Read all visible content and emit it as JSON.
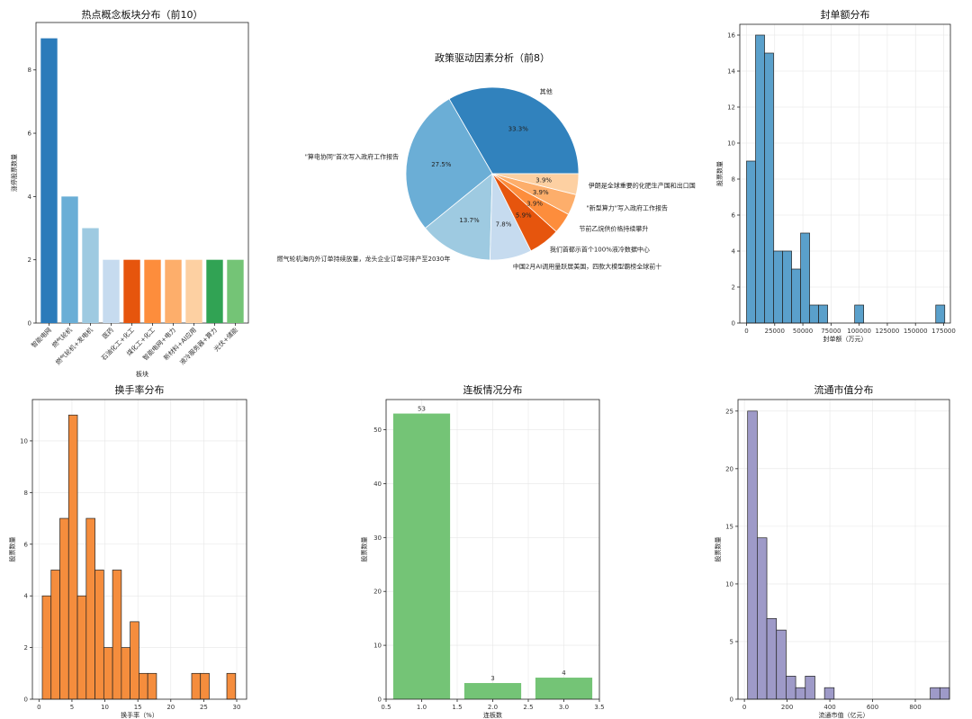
{
  "chart_data": [
    {
      "id": "concept",
      "type": "bar",
      "title": "热点概念板块分布（前10）",
      "xlabel": "板块",
      "ylabel": "涨停股票数量",
      "categories": [
        "智能电网",
        "燃气轮机",
        "燃气轮机+发电机",
        "医药",
        "石油化工+化工",
        "煤化工+化工",
        "智能电网+电力",
        "新材料+AI应用",
        "液冷服务器+算力",
        "光伏+储能"
      ],
      "values": [
        9,
        4,
        3,
        2,
        2,
        2,
        2,
        2,
        2,
        2
      ],
      "colors": [
        "#2b7bba",
        "#6aaed6",
        "#9ecae1",
        "#c6dbef",
        "#e6550d",
        "#fd8d3c",
        "#fdae6b",
        "#fdd0a2",
        "#31a354",
        "#74c476"
      ],
      "ylim": [
        0,
        9.5
      ],
      "yticks": [
        0,
        2,
        4,
        6,
        8
      ]
    },
    {
      "id": "policy",
      "type": "pie",
      "title": "政策驱动因素分析（前8）",
      "slices": [
        {
          "label": "其他",
          "value": 33.3,
          "pct": "33.3%",
          "color": "#3182bd"
        },
        {
          "label": "\"算电协同\"首次写入政府工作报告",
          "value": 27.5,
          "pct": "27.5%",
          "color": "#6baed6"
        },
        {
          "label": "燃气轮机海内外订单持续放量，龙头企业订单可排产至2030年",
          "value": 13.7,
          "pct": "13.7%",
          "color": "#9ecae1"
        },
        {
          "label": "中国2月AI调用量跃居美国，四款大模型霸榜全球前十",
          "value": 7.8,
          "pct": "7.8%",
          "color": "#c6dbef"
        },
        {
          "label": "我们首都示首个100%液冷数据中心",
          "value": 5.9,
          "pct": "5.9%",
          "color": "#e6550d"
        },
        {
          "label": "节前乙烷供价格持续攀升",
          "value": 3.9,
          "pct": "3.9%",
          "color": "#fd8d3c"
        },
        {
          "label": "\"新型算力\"写入政府工作报告",
          "value": 3.9,
          "pct": "3.9%",
          "color": "#fdae6b"
        },
        {
          "label": "伊朗是全球重要的化肥生产国和出口国",
          "value": 3.9,
          "pct": "3.9%",
          "color": "#fdd0a2"
        }
      ]
    },
    {
      "id": "seal",
      "type": "bar",
      "title": "封单额分布",
      "xlabel": "封单额（万元）",
      "ylabel": "股票数量",
      "bin_width": 8000,
      "bins_start": [
        0,
        8000,
        16000,
        24000,
        32000,
        40000,
        48000,
        56000,
        64000,
        72000,
        80000,
        88000,
        96000,
        104000,
        112000,
        120000,
        128000,
        136000,
        144000,
        152000,
        160000,
        168000
      ],
      "values": [
        9,
        16,
        15,
        4,
        4,
        3,
        5,
        1,
        1,
        0,
        0,
        0,
        1,
        0,
        0,
        0,
        0,
        0,
        0,
        0,
        0,
        1
      ],
      "color": "#5aa0cb",
      "xlim": [
        -6000,
        181000
      ],
      "ylim": [
        0,
        16.6
      ],
      "xticks": [
        0,
        25000,
        50000,
        75000,
        100000,
        125000,
        150000,
        175000
      ],
      "yticks": [
        0,
        2,
        4,
        6,
        8,
        10,
        12,
        14,
        16
      ]
    },
    {
      "id": "turnover",
      "type": "bar",
      "title": "换手率分布",
      "xlabel": "换手率（%）",
      "ylabel": "股票数量",
      "bin_width": 1.333,
      "bins_start": [
        0.5,
        1.833,
        3.167,
        4.5,
        5.833,
        7.167,
        8.5,
        9.833,
        11.167,
        12.5,
        13.833,
        15.167,
        16.5,
        17.833,
        19.167,
        20.5,
        21.833,
        23.167,
        24.5,
        25.833,
        27.167,
        28.5
      ],
      "values": [
        4,
        5,
        7,
        11,
        4,
        7,
        5,
        2,
        5,
        2,
        3,
        1,
        1,
        0,
        0,
        0,
        0,
        1,
        1,
        0,
        0,
        1
      ],
      "color": "#f58d3d",
      "xlim": [
        -1,
        31.5
      ],
      "ylim": [
        0,
        11.6
      ],
      "xticks": [
        0,
        5,
        10,
        15,
        20,
        25,
        30
      ],
      "yticks": [
        0,
        2,
        4,
        6,
        8,
        10
      ]
    },
    {
      "id": "streak",
      "type": "bar",
      "title": "连板情况分布",
      "xlabel": "连板数",
      "ylabel": "股票数量",
      "x": [
        1.0,
        2.0,
        3.0
      ],
      "values": [
        53,
        3,
        4
      ],
      "data_labels": [
        "53",
        "3",
        "4"
      ],
      "bar_width": 0.8,
      "color": "#74c476",
      "xlim": [
        0.5,
        3.5
      ],
      "ylim": [
        0,
        55.6
      ],
      "xticks": [
        "0.5",
        "1.0",
        "1.5",
        "2.0",
        "2.5",
        "3.0",
        "3.5"
      ],
      "yticks": [
        0,
        10,
        20,
        30,
        40,
        50
      ]
    },
    {
      "id": "float_cap",
      "type": "bar",
      "title": "流通市值分布",
      "xlabel": "流通市值（亿元）",
      "ylabel": "股票数量",
      "bin_width": 45,
      "bins_start": [
        15,
        60,
        105,
        150,
        195,
        240,
        285,
        330,
        375,
        420,
        465,
        510,
        555,
        600,
        645,
        690,
        735,
        780,
        825,
        870
      ],
      "values": [
        25,
        14,
        7,
        6,
        2,
        1,
        2,
        0,
        1,
        0,
        0,
        0,
        0,
        0,
        0,
        0,
        0,
        0,
        0,
        1
      ],
      "extra_last": 1,
      "color": "#9e9ac8",
      "xlim": [
        -30,
        960
      ],
      "ylim": [
        0,
        26
      ],
      "xticks": [
        0,
        200,
        400,
        600,
        800
      ],
      "yticks": [
        0,
        5,
        10,
        15,
        20,
        25
      ]
    }
  ]
}
